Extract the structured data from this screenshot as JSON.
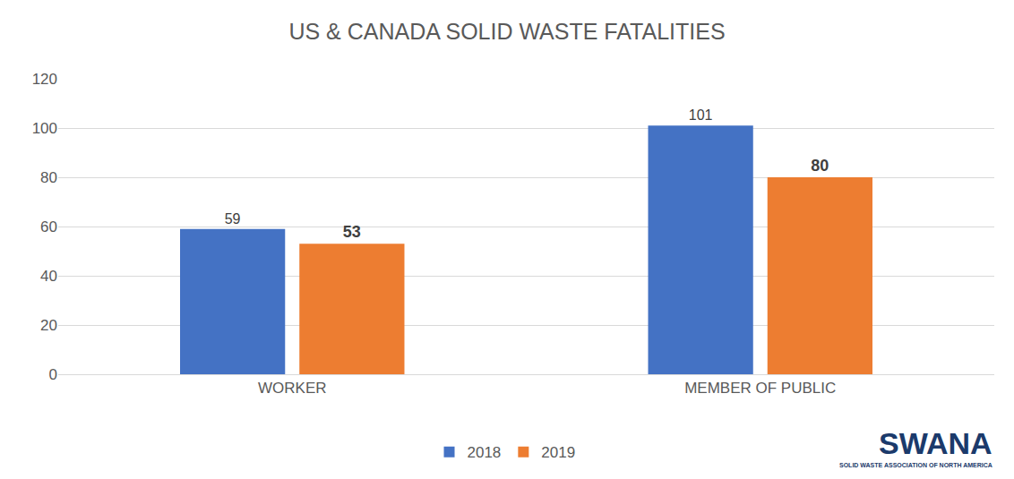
{
  "chart_data": {
    "type": "bar",
    "title": "US & CANADA SOLID WASTE FATALITIES",
    "categories": [
      "WORKER",
      "MEMBER OF PUBLIC"
    ],
    "series": [
      {
        "name": "2018",
        "color": "#4472c4",
        "values": [
          59,
          101
        ]
      },
      {
        "name": "2019",
        "color": "#ed7d31",
        "values": [
          53,
          80
        ]
      }
    ],
    "ylim": [
      0,
      120
    ],
    "yticks": [
      0,
      20,
      40,
      60,
      80,
      100,
      120
    ],
    "grid": true,
    "legend": "bottom",
    "data_labels": true,
    "annotations": [
      "SWANA",
      "SOLID WASTE ASSOCIATION OF NORTH AMERICA"
    ]
  }
}
